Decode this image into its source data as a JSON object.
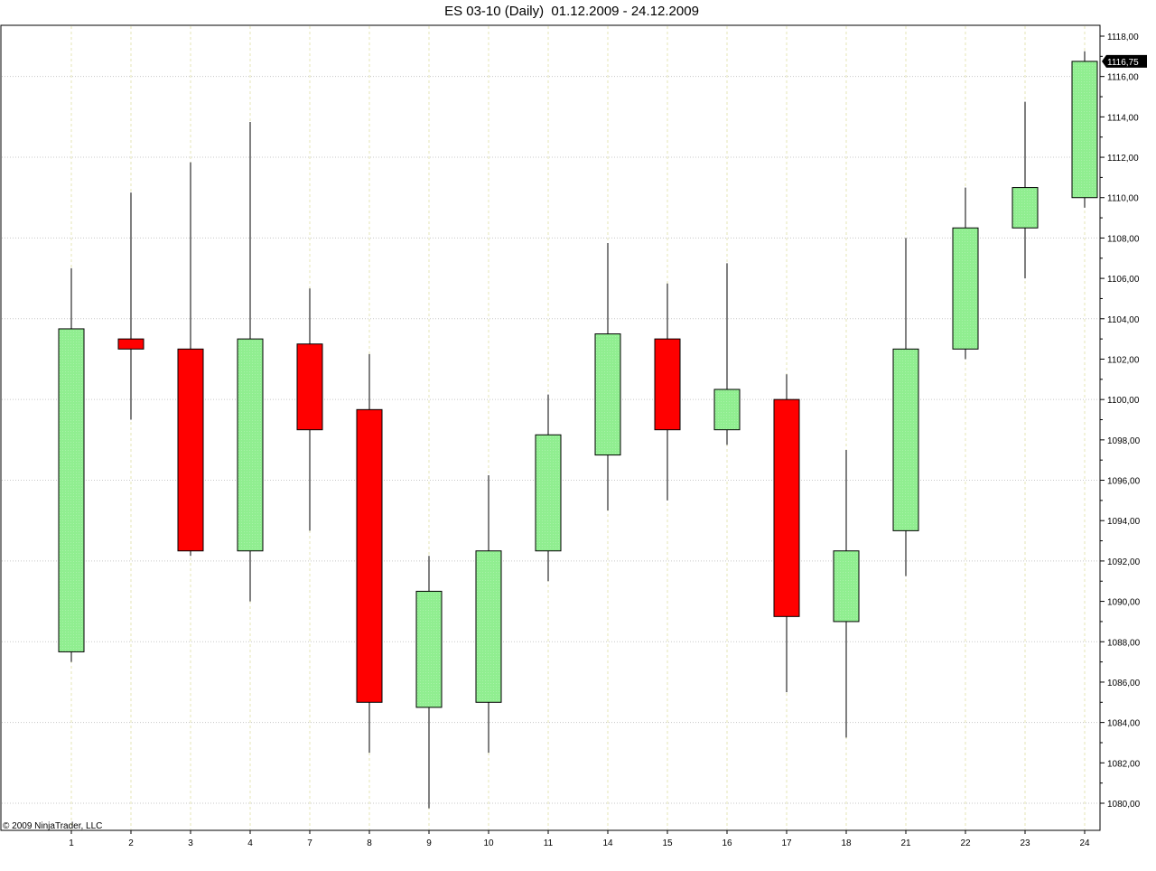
{
  "chart_data": {
    "type": "candlestick",
    "title": "ES 03-10 (Daily)  01.12.2009 - 24.12.2009",
    "copyright": "© 2009 NinjaTrader, LLC",
    "x_categories": [
      "1",
      "2",
      "3",
      "4",
      "7",
      "8",
      "9",
      "10",
      "11",
      "14",
      "15",
      "16",
      "17",
      "18",
      "21",
      "22",
      "23",
      "24"
    ],
    "ylim": [
      1078.6,
      1118.3
    ],
    "y_ticks": [
      1080,
      1082,
      1084,
      1086,
      1088,
      1090,
      1092,
      1094,
      1096,
      1098,
      1100,
      1102,
      1104,
      1106,
      1108,
      1110,
      1112,
      1114,
      1116,
      1118
    ],
    "y_tick_labels": [
      "1080,00",
      "1082,00",
      "1084,00",
      "1086,00",
      "1088,00",
      "1090,00",
      "1092,00",
      "1094,00",
      "1096,00",
      "1098,00",
      "1100,00",
      "1102,00",
      "1104,00",
      "1106,00",
      "1108,00",
      "1110,00",
      "1112,00",
      "1114,00",
      "1116,00",
      "1118,00"
    ],
    "last_price": 1116.75,
    "last_price_label": "1116,75",
    "grid": true,
    "colors": {
      "up": "#90ee90",
      "down": "#ff0000",
      "grid": "#c8c8c8",
      "vgrid": "#e6e6b4",
      "wick": "#000000"
    },
    "candles": [
      {
        "day": "1",
        "open": 1087.5,
        "high": 1106.5,
        "low": 1087.0,
        "close": 1103.5
      },
      {
        "day": "2",
        "open": 1103.0,
        "high": 1110.25,
        "low": 1099.0,
        "close": 1102.5
      },
      {
        "day": "3",
        "open": 1102.5,
        "high": 1111.75,
        "low": 1092.25,
        "close": 1092.5
      },
      {
        "day": "4",
        "open": 1092.5,
        "high": 1113.75,
        "low": 1090.0,
        "close": 1103.0
      },
      {
        "day": "7",
        "open": 1102.75,
        "high": 1105.5,
        "low": 1093.5,
        "close": 1098.5
      },
      {
        "day": "8",
        "open": 1099.5,
        "high": 1102.25,
        "low": 1082.5,
        "close": 1085.0
      },
      {
        "day": "9",
        "open": 1084.75,
        "high": 1092.25,
        "low": 1079.75,
        "close": 1090.5
      },
      {
        "day": "10",
        "open": 1085.0,
        "high": 1096.25,
        "low": 1082.5,
        "close": 1092.5
      },
      {
        "day": "11",
        "open": 1092.5,
        "high": 1100.25,
        "low": 1091.0,
        "close": 1098.25
      },
      {
        "day": "14",
        "open": 1097.25,
        "high": 1107.75,
        "low": 1094.5,
        "close": 1103.25
      },
      {
        "day": "15",
        "open": 1103.0,
        "high": 1105.75,
        "low": 1095.0,
        "close": 1098.5
      },
      {
        "day": "16",
        "open": 1098.5,
        "high": 1106.75,
        "low": 1097.75,
        "close": 1100.5
      },
      {
        "day": "17",
        "open": 1100.0,
        "high": 1101.25,
        "low": 1085.5,
        "close": 1089.25
      },
      {
        "day": "18",
        "open": 1089.0,
        "high": 1097.5,
        "low": 1083.25,
        "close": 1092.5
      },
      {
        "day": "21",
        "open": 1093.5,
        "high": 1108.0,
        "low": 1091.25,
        "close": 1102.5
      },
      {
        "day": "22",
        "open": 1102.5,
        "high": 1110.5,
        "low": 1102.0,
        "close": 1108.5
      },
      {
        "day": "23",
        "open": 1108.5,
        "high": 1114.75,
        "low": 1106.0,
        "close": 1110.5
      },
      {
        "day": "24",
        "open": 1110.0,
        "high": 1117.25,
        "low": 1109.5,
        "close": 1116.75
      }
    ]
  }
}
